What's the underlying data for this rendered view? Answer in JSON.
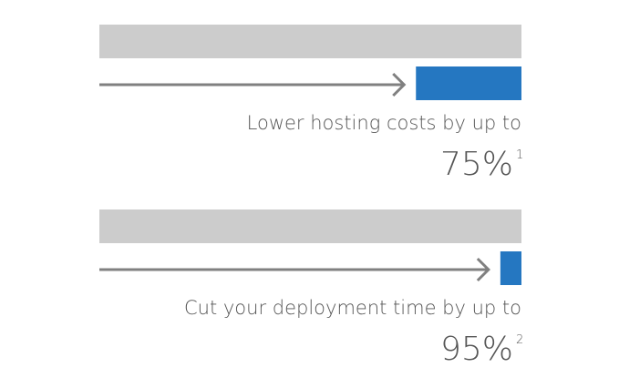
{
  "items": [
    {
      "caption": "Lower hosting costs by up to",
      "value": 75,
      "value_label": "75%",
      "footnote": "1"
    },
    {
      "caption": "Cut your deployment time by up to",
      "value": 95,
      "value_label": "95%",
      "footnote": "2"
    }
  ]
}
